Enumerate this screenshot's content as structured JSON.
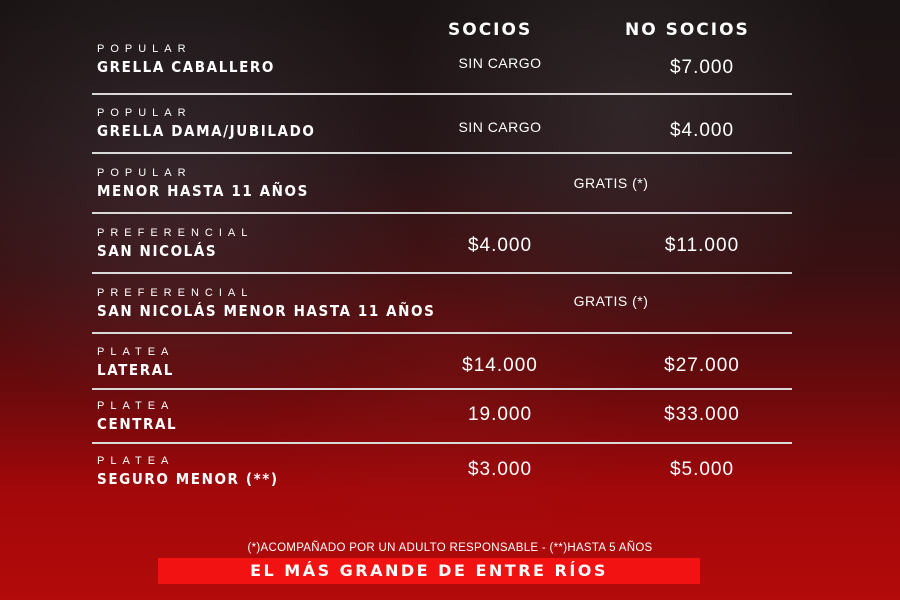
{
  "headers": {
    "socios": "SOCIOS",
    "no_socios": "NO SOCIOS"
  },
  "rows": [
    {
      "category": "POPULAR",
      "name": "GRELLA CABALLERO",
      "socios": "SIN CARGO",
      "no_socios": "$7.000"
    },
    {
      "category": "POPULAR",
      "name": "GRELLA DAMA/JUBILADO",
      "socios": "SIN CARGO",
      "no_socios": "$4.000"
    },
    {
      "category": "POPULAR",
      "name": "MENOR HASTA 11 AÑOS",
      "both": "GRATIS (*)"
    },
    {
      "category": "PREFERENCIAL",
      "name": "SAN NICOLÁS",
      "socios": "$4.000",
      "no_socios": "$11.000"
    },
    {
      "category": "PREFERENCIAL",
      "name": "SAN NICOLÁS MENOR HASTA 11 AÑOS",
      "both": "GRATIS (*)"
    },
    {
      "category": "PLATEA",
      "name": "LATERAL",
      "socios": "$14.000",
      "no_socios": "$27.000"
    },
    {
      "category": "PLATEA",
      "name": "CENTRAL",
      "socios": "19.000",
      "no_socios": "$33.000"
    },
    {
      "category": "PLATEA",
      "name": "SEGURO MENOR (**)",
      "socios": "$3.000",
      "no_socios": "$5.000"
    }
  ],
  "footnote": "(*)ACOMPAÑADO POR UN ADULTO RESPONSABLE - (**)HASTA 5 AÑOS",
  "banner": "EL MÁS GRANDE DE ENTRE RÍOS",
  "colors": {
    "banner": "#f21212",
    "accent": "#b30a0a"
  }
}
